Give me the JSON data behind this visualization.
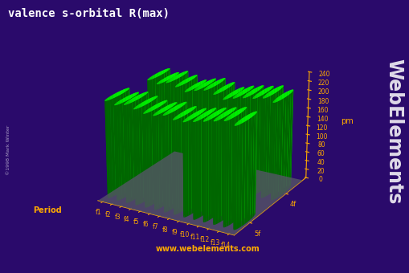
{
  "title": "valence s-orbital R(max)",
  "ylabel": "pm",
  "period_label": "Period",
  "periods": [
    "4f",
    "5f"
  ],
  "f_labels": [
    "f1",
    "f2",
    "f3",
    "f4",
    "f5",
    "f6",
    "f7",
    "f8",
    "f9",
    "f10",
    "f11",
    "f12",
    "f13",
    "f14"
  ],
  "website": "www.webelements.com",
  "watermark": "©1998 Mark Winter",
  "webelements_text": "WebElements",
  "yticks": [
    0,
    20,
    40,
    60,
    80,
    100,
    120,
    140,
    160,
    180,
    200,
    220,
    240
  ],
  "background_color": "#2a0a6b",
  "bar_color_bright": "#00ff00",
  "bar_color_dark": "#005500",
  "axis_color": "#ffaa00",
  "title_color": "#ffffff",
  "values_4f": [
    210,
    205,
    212,
    207,
    200,
    207,
    212,
    207,
    200,
    207,
    212,
    215,
    220,
    215
  ],
  "values_5f": [
    215,
    210,
    215,
    210,
    205,
    205,
    210,
    205,
    205,
    210,
    215,
    220,
    225,
    220
  ],
  "elev": 22,
  "azim": -60
}
